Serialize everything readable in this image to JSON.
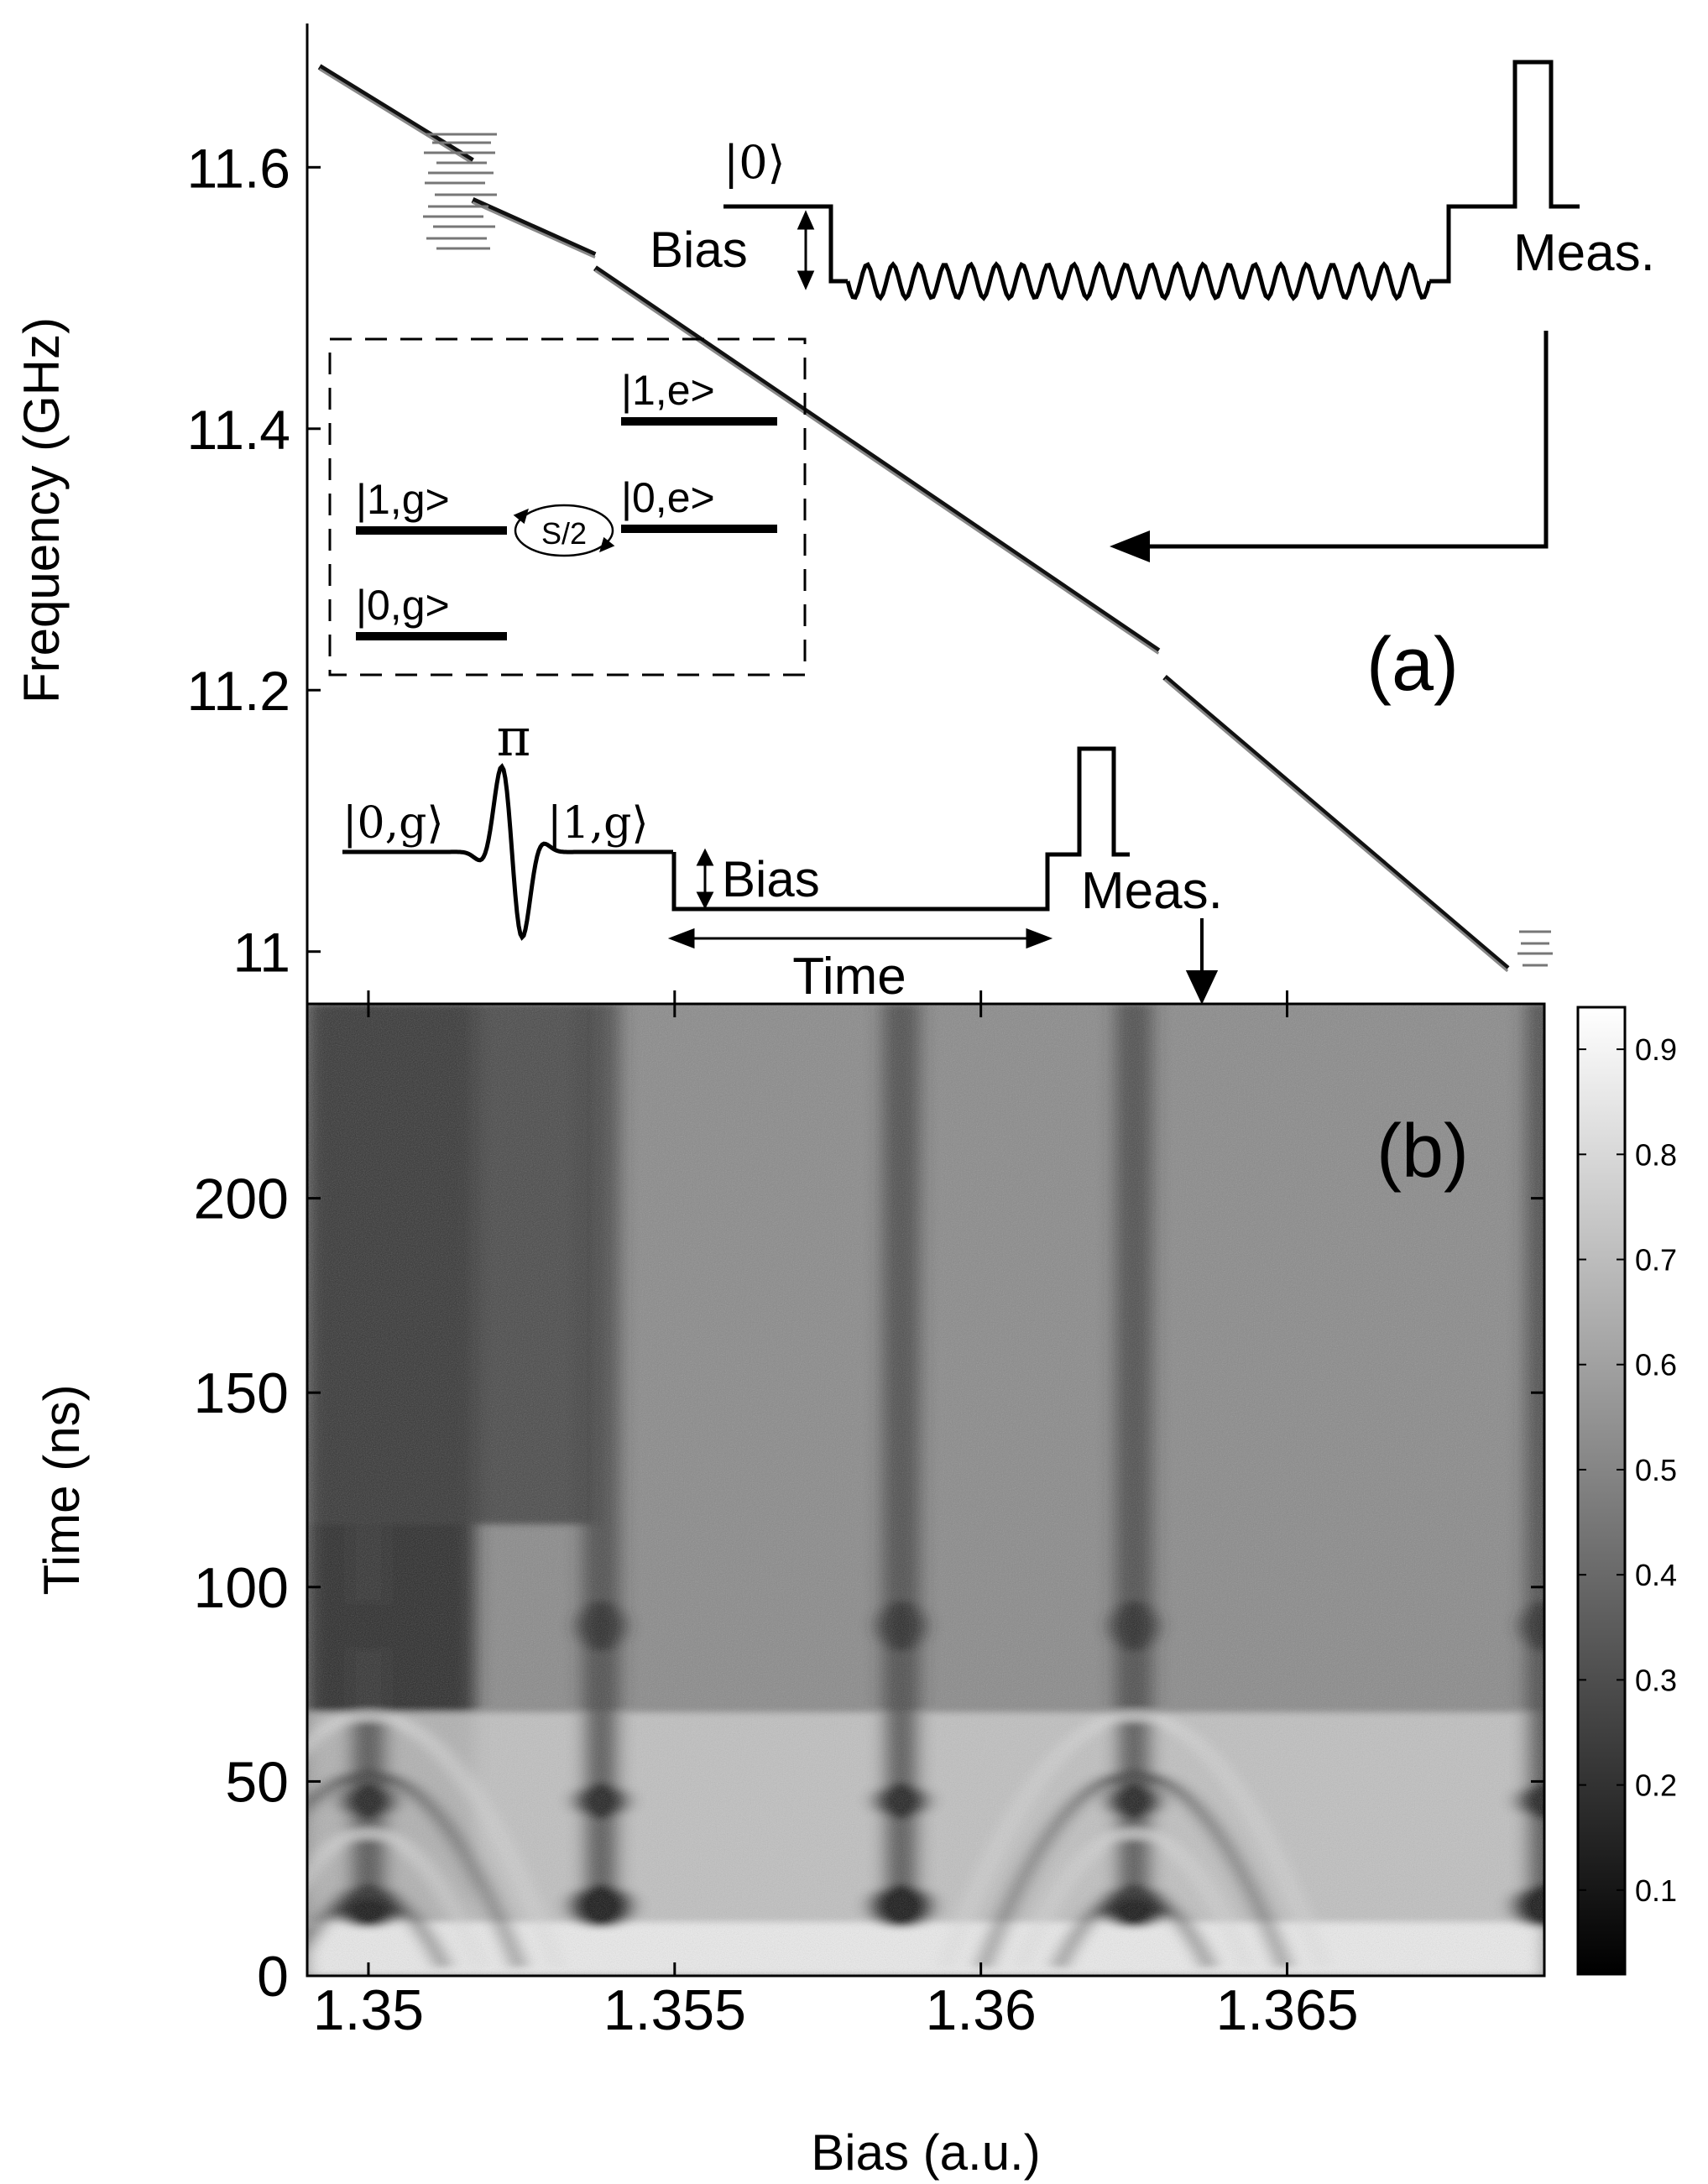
{
  "chart_data": [
    {
      "type": "line",
      "panel_label": "(a)",
      "xlabel": "",
      "ylabel": "Frequency (GHz)",
      "xlim": [
        1.349,
        1.3692
      ],
      "ylim": [
        10.96,
        11.71
      ],
      "x_ticks": [
        1.35,
        1.355,
        1.36,
        1.365
      ],
      "y_ticks": [
        11,
        11.2,
        11.4,
        11.6
      ],
      "y_tick_labels": [
        "11",
        "11.2",
        "11.4",
        "11.6"
      ],
      "series": [
        {
          "segments": [
            {
              "x": [
                1.3492,
                1.3517
              ],
              "y": [
                11.677,
                11.605
              ]
            },
            {
              "x": [
                1.3517,
                1.3537
              ],
              "y": [
                11.575,
                11.533
              ]
            },
            {
              "x": [
                1.3537,
                1.3629
              ],
              "y": [
                11.523,
                11.23
              ]
            },
            {
              "x": [
                1.363,
                1.3686
              ],
              "y": [
                11.21,
                10.987
              ]
            }
          ]
        }
      ],
      "annotations": {
        "bias": "Bias",
        "meas": "Meas.",
        "time": "Time",
        "pi": "π",
        "ket_0": "|0⟩",
        "ket_0g": "|0,g⟩",
        "ket_1g": "|1,g⟩",
        "level_1e": "|1,e>",
        "level_1g": "|1,g>",
        "level_0e": "|0,e>",
        "level_0g": "|0,g>",
        "coupling": "S/2"
      }
    },
    {
      "type": "heatmap",
      "panel_label": "(b)",
      "xlabel": "Bias (a.u.)",
      "ylabel": "Time (ns)",
      "xlim": [
        1.349,
        1.3692
      ],
      "ylim": [
        0,
        250
      ],
      "x_ticks": [
        1.35,
        1.355,
        1.36,
        1.365
      ],
      "x_tick_labels": [
        "1.35",
        "1.355",
        "1.36",
        "1.365"
      ],
      "y_ticks": [
        0,
        50,
        100,
        150,
        200
      ],
      "y_tick_labels": [
        "0",
        "50",
        "100",
        "150",
        "200"
      ],
      "colormap": "gray",
      "colorbar": {
        "range": [
          0.02,
          0.94
        ],
        "ticks": [
          0.1,
          0.2,
          0.3,
          0.4,
          0.5,
          0.6,
          0.7,
          0.8,
          0.9
        ],
        "tick_labels": [
          "0.1",
          "0.2",
          "0.3",
          "0.4",
          "0.5",
          "0.6",
          "0.7",
          "0.8",
          "0.9"
        ]
      },
      "dark_features_bias": [
        1.35,
        1.3538,
        1.3587,
        1.3625,
        1.3692
      ]
    }
  ]
}
